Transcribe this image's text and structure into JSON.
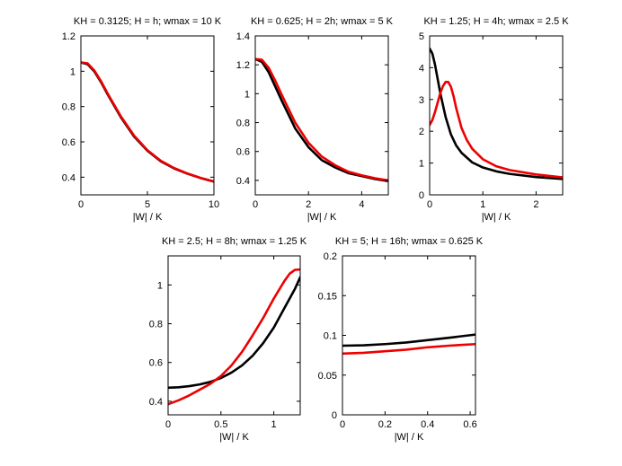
{
  "colors": {
    "series_1": "#000000",
    "series_2": "#ee0000",
    "background": "#ffffff"
  },
  "chart_data": [
    {
      "type": "line",
      "title": "KH = 0.3125; H = h; wmax = 10 K",
      "xlabel": "|W| / K",
      "ylabel": "",
      "xlim": [
        0,
        10
      ],
      "ylim": [
        0.3,
        1.2
      ],
      "xticks": [
        0,
        5,
        10
      ],
      "xtick_labels": [
        "0",
        "5",
        "10"
      ],
      "yticks": [
        0.4,
        0.6,
        0.8,
        1,
        1.2
      ],
      "ytick_labels": [
        "0.4",
        "0.6",
        "0.8",
        "1",
        "1.2"
      ],
      "grid": false,
      "series": [
        {
          "name": "black",
          "color": "#000000",
          "x": [
            0,
            0.5,
            1,
            1.5,
            2,
            3,
            4,
            5,
            6,
            7,
            8,
            9,
            10
          ],
          "y": [
            1.05,
            1.04,
            1.0,
            0.94,
            0.87,
            0.74,
            0.63,
            0.55,
            0.49,
            0.45,
            0.42,
            0.395,
            0.375
          ]
        },
        {
          "name": "red",
          "color": "#ee0000",
          "x": [
            0,
            0.5,
            1,
            1.5,
            2,
            3,
            4,
            5,
            6,
            7,
            8,
            9,
            10
          ],
          "y": [
            1.05,
            1.045,
            1.005,
            0.945,
            0.875,
            0.745,
            0.635,
            0.553,
            0.493,
            0.452,
            0.421,
            0.396,
            0.376
          ]
        }
      ]
    },
    {
      "type": "line",
      "title": "KH = 0.625; H = 2h; wmax = 5 K",
      "xlabel": "|W| / K",
      "ylabel": "",
      "xlim": [
        0,
        5
      ],
      "ylim": [
        0.3,
        1.4
      ],
      "xticks": [
        0,
        2,
        4
      ],
      "xtick_labels": [
        "0",
        "2",
        "4"
      ],
      "yticks": [
        0.4,
        0.6,
        0.8,
        1,
        1.2,
        1.4
      ],
      "ytick_labels": [
        "0.4",
        "0.6",
        "0.8",
        "1",
        "1.2",
        "1.4"
      ],
      "grid": false,
      "series": [
        {
          "name": "black",
          "color": "#000000",
          "x": [
            0,
            0.25,
            0.5,
            0.75,
            1,
            1.5,
            2,
            2.5,
            3,
            3.5,
            4,
            4.5,
            5
          ],
          "y": [
            1.24,
            1.22,
            1.15,
            1.05,
            0.95,
            0.76,
            0.63,
            0.54,
            0.49,
            0.45,
            0.43,
            0.41,
            0.395
          ]
        },
        {
          "name": "red",
          "color": "#ee0000",
          "x": [
            0,
            0.25,
            0.5,
            0.75,
            1,
            1.5,
            2,
            2.5,
            3,
            3.5,
            4,
            4.5,
            5
          ],
          "y": [
            1.24,
            1.235,
            1.18,
            1.09,
            0.99,
            0.8,
            0.66,
            0.565,
            0.505,
            0.46,
            0.435,
            0.415,
            0.4
          ]
        }
      ]
    },
    {
      "type": "line",
      "title": "KH = 1.25; H = 4h; wmax = 2.5 K",
      "xlabel": "|W| / K",
      "ylabel": "",
      "xlim": [
        0,
        2.5
      ],
      "ylim": [
        0,
        5
      ],
      "xticks": [
        0,
        1,
        2
      ],
      "xtick_labels": [
        "0",
        "1",
        "2"
      ],
      "yticks": [
        0,
        1,
        2,
        3,
        4,
        5
      ],
      "ytick_labels": [
        "0",
        "1",
        "2",
        "3",
        "4",
        "5"
      ],
      "grid": false,
      "series": [
        {
          "name": "black",
          "color": "#000000",
          "x": [
            0,
            0.05,
            0.1,
            0.15,
            0.2,
            0.3,
            0.4,
            0.5,
            0.6,
            0.8,
            1.0,
            1.25,
            1.5,
            2.0,
            2.5
          ],
          "y": [
            4.6,
            4.45,
            4.1,
            3.65,
            3.2,
            2.45,
            1.9,
            1.55,
            1.32,
            1.02,
            0.86,
            0.74,
            0.66,
            0.56,
            0.5
          ]
        },
        {
          "name": "red",
          "color": "#ee0000",
          "x": [
            0,
            0.05,
            0.1,
            0.15,
            0.2,
            0.25,
            0.3,
            0.35,
            0.4,
            0.45,
            0.5,
            0.6,
            0.7,
            0.8,
            1.0,
            1.25,
            1.5,
            2.0,
            2.5
          ],
          "y": [
            2.2,
            2.35,
            2.6,
            2.9,
            3.2,
            3.42,
            3.55,
            3.55,
            3.4,
            3.1,
            2.72,
            2.1,
            1.72,
            1.45,
            1.12,
            0.9,
            0.78,
            0.64,
            0.55
          ]
        }
      ]
    },
    {
      "type": "line",
      "title": "KH = 2.5; H = 8h; wmax = 1.25 K",
      "xlabel": "|W| / K",
      "ylabel": "",
      "xlim": [
        0,
        1.25
      ],
      "ylim": [
        0.33,
        1.15
      ],
      "xticks": [
        0,
        0.5,
        1
      ],
      "xtick_labels": [
        "0",
        "0.5",
        "1"
      ],
      "yticks": [
        0.4,
        0.6,
        0.8,
        1
      ],
      "ytick_labels": [
        "0.4",
        "0.6",
        "0.8",
        "1"
      ],
      "grid": false,
      "series": [
        {
          "name": "black",
          "color": "#000000",
          "x": [
            0,
            0.1,
            0.2,
            0.3,
            0.4,
            0.5,
            0.6,
            0.7,
            0.8,
            0.9,
            1.0,
            1.1,
            1.2,
            1.25
          ],
          "y": [
            0.47,
            0.472,
            0.478,
            0.487,
            0.5,
            0.52,
            0.548,
            0.585,
            0.635,
            0.7,
            0.78,
            0.88,
            0.98,
            1.04
          ]
        },
        {
          "name": "red",
          "color": "#ee0000",
          "x": [
            0,
            0.1,
            0.2,
            0.3,
            0.4,
            0.5,
            0.6,
            0.7,
            0.8,
            0.9,
            1.0,
            1.1,
            1.15,
            1.2,
            1.25
          ],
          "y": [
            0.385,
            0.405,
            0.43,
            0.46,
            0.49,
            0.53,
            0.585,
            0.655,
            0.74,
            0.83,
            0.93,
            1.02,
            1.058,
            1.078,
            1.08
          ]
        }
      ]
    },
    {
      "type": "line",
      "title": "KH = 5; H = 16h; wmax = 0.625 K",
      "xlabel": "|W| / K",
      "ylabel": "",
      "xlim": [
        0,
        0.625
      ],
      "ylim": [
        0,
        0.2
      ],
      "xticks": [
        0,
        0.2,
        0.4,
        0.6
      ],
      "xtick_labels": [
        "0",
        "0.2",
        "0.4",
        "0.6"
      ],
      "yticks": [
        0,
        0.05,
        0.1,
        0.15,
        0.2
      ],
      "ytick_labels": [
        "0",
        "0.05",
        "0.1",
        "0.15",
        "0.2"
      ],
      "grid": false,
      "series": [
        {
          "name": "black",
          "color": "#000000",
          "x": [
            0,
            0.1,
            0.2,
            0.3,
            0.4,
            0.5,
            0.625
          ],
          "y": [
            0.087,
            0.0875,
            0.089,
            0.091,
            0.094,
            0.097,
            0.101
          ]
        },
        {
          "name": "red",
          "color": "#ee0000",
          "x": [
            0,
            0.1,
            0.2,
            0.3,
            0.4,
            0.5,
            0.625
          ],
          "y": [
            0.077,
            0.078,
            0.08,
            0.082,
            0.085,
            0.087,
            0.089
          ]
        }
      ]
    }
  ]
}
